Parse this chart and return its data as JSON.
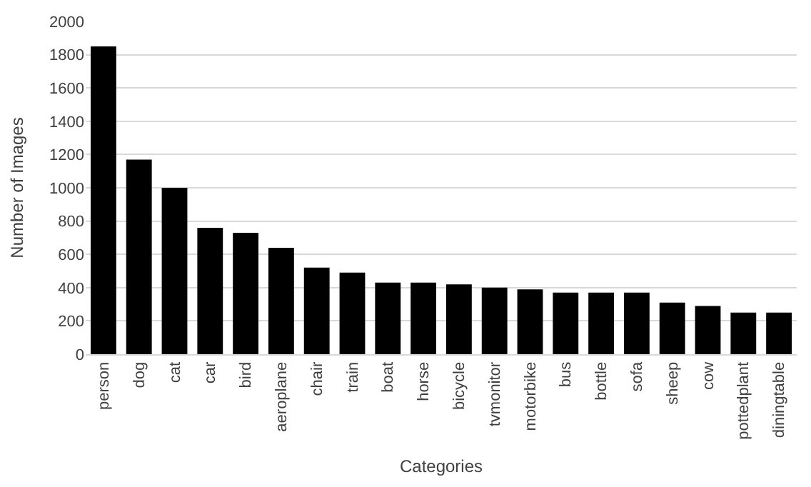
{
  "chart_data": {
    "type": "bar",
    "xlabel": "Categories",
    "ylabel": "Number of Images",
    "categories": [
      "person",
      "dog",
      "cat",
      "car",
      "bird",
      "aeroplane",
      "chair",
      "train",
      "boat",
      "horse",
      "bicycle",
      "tvmonitor",
      "motorbike",
      "bus",
      "bottle",
      "sofa",
      "sheep",
      "cow",
      "pottedplant",
      "diningtable"
    ],
    "values": [
      1850,
      1170,
      1000,
      760,
      730,
      640,
      520,
      490,
      430,
      430,
      420,
      400,
      390,
      370,
      370,
      370,
      310,
      290,
      250,
      250
    ],
    "color": "#000000",
    "ylim": [
      0,
      2000
    ],
    "yticks": [
      0,
      200,
      400,
      600,
      800,
      1000,
      1200,
      1400,
      1600,
      1800,
      2000
    ],
    "grid": "y"
  }
}
